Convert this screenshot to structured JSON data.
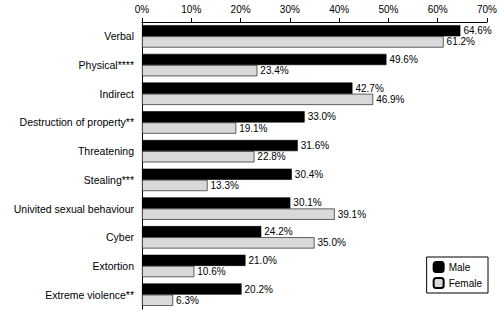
{
  "chart_data": {
    "type": "bar",
    "orientation": "horizontal",
    "categories": [
      "Verbal",
      "Physical****",
      "Indirect",
      "Destruction of property**",
      "Threatening",
      "Stealing***",
      "Univited sexual behaviour",
      "Cyber",
      "Extortion",
      "Extreme violence**"
    ],
    "series": [
      {
        "name": "Male",
        "color": "#000000",
        "values": [
          64.6,
          49.6,
          42.7,
          33.0,
          31.6,
          30.4,
          30.1,
          24.2,
          21.0,
          20.2
        ],
        "value_labels": [
          "64.6%",
          "49.6%",
          "42.7%",
          "33.0%",
          "31.6%",
          "30.4%",
          "30.1%",
          "24.2%",
          "21.0%",
          "20.2%"
        ]
      },
      {
        "name": "Female",
        "color": "#d9d9d9",
        "values": [
          61.2,
          23.4,
          46.9,
          19.1,
          22.8,
          13.3,
          39.1,
          35.0,
          10.6,
          6.3
        ],
        "value_labels": [
          "61.2%",
          "23.4%",
          "46.9%",
          "19.1%",
          "22.8%",
          "13.3%",
          "39.1%",
          "35.0%",
          "10.6%",
          "6.3%"
        ]
      }
    ],
    "xlim": [
      0,
      70
    ],
    "xticks": [
      {
        "value": 0,
        "label": "0%"
      },
      {
        "value": 10,
        "label": "10%"
      },
      {
        "value": 20,
        "label": "20%"
      },
      {
        "value": 30,
        "label": "30%"
      },
      {
        "value": 40,
        "label": "40%"
      },
      {
        "value": 50,
        "label": "50%"
      },
      {
        "value": 60,
        "label": "60%"
      },
      {
        "value": 70,
        "label": "70%"
      }
    ],
    "data_labels": true,
    "legend": "lower right",
    "grid": false
  }
}
